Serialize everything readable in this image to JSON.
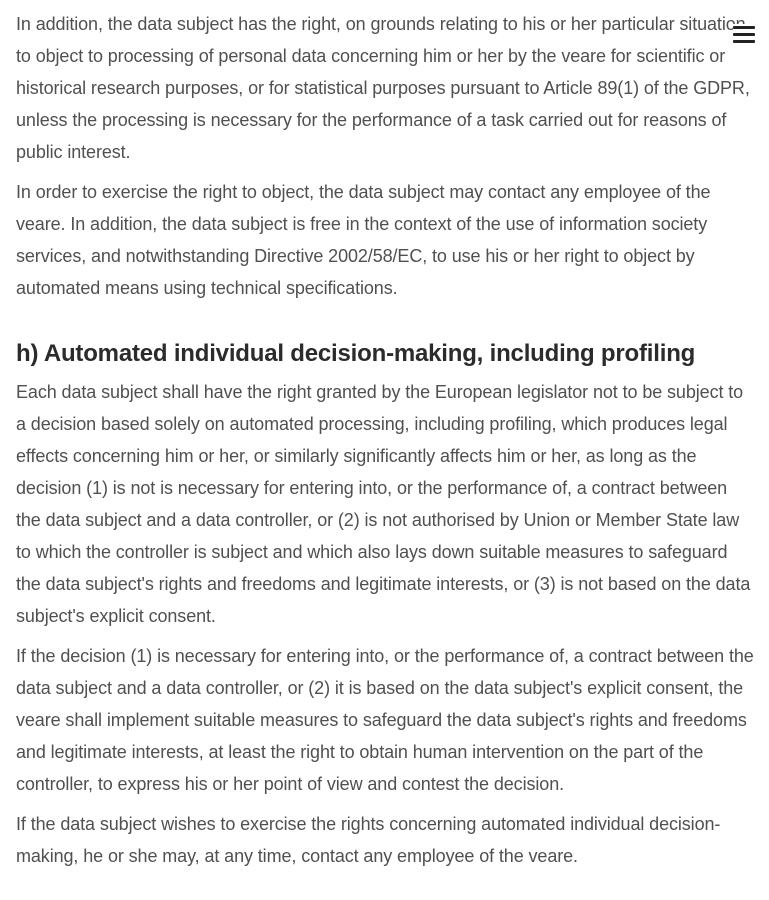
{
  "paragraphs_top": [
    "In addition, the data subject has the right, on grounds relating to his or her particular situation, to object to processing of personal data concerning him or her by the veare for scientific or historical research purposes, or for statistical purposes pursuant to Article 89(1) of the GDPR, unless the processing is necessary for the performance of a task carried out for reasons of public interest.",
    "In order to exercise the right to object, the data subject may contact any employee of the veare. In addition, the data subject is free in the context of the use of information society services, and notwithstanding Directive 2002/58/EC, to use his or her right to object by automated means using technical specifications."
  ],
  "section_h": {
    "heading": "h) Automated individual decision-making, including profiling",
    "paragraphs": [
      "Each data subject shall have the right granted by the European legislator not to be subject to a decision based solely on automated processing, including profiling, which produces legal effects concerning him or her, or similarly significantly affects him or her, as long as the decision (1) is not is necessary for entering into, or the performance of, a contract between the data subject and a data controller, or (2) is not authorised by Union or Member State law to which the controller is subject and which also lays down suitable measures to safeguard the data subject's rights and freedoms and legitimate interests, or (3) is not based on the data subject's explicit consent.",
      "If the decision (1) is necessary for entering into, or the performance of, a contract between the data subject and a data controller, or (2) it is based on the data subject's explicit consent, the veare shall implement suitable measures to safeguard the data subject's rights and freedoms and legitimate interests, at least the right to obtain human intervention on the part of the controller, to express his or her point of view and contest the decision.",
      "If the data subject wishes to exercise the rights concerning automated individual decision-making, he or she may, at any time, contact any employee of the veare."
    ]
  },
  "menu": {
    "icon": "hamburger-menu-icon"
  }
}
